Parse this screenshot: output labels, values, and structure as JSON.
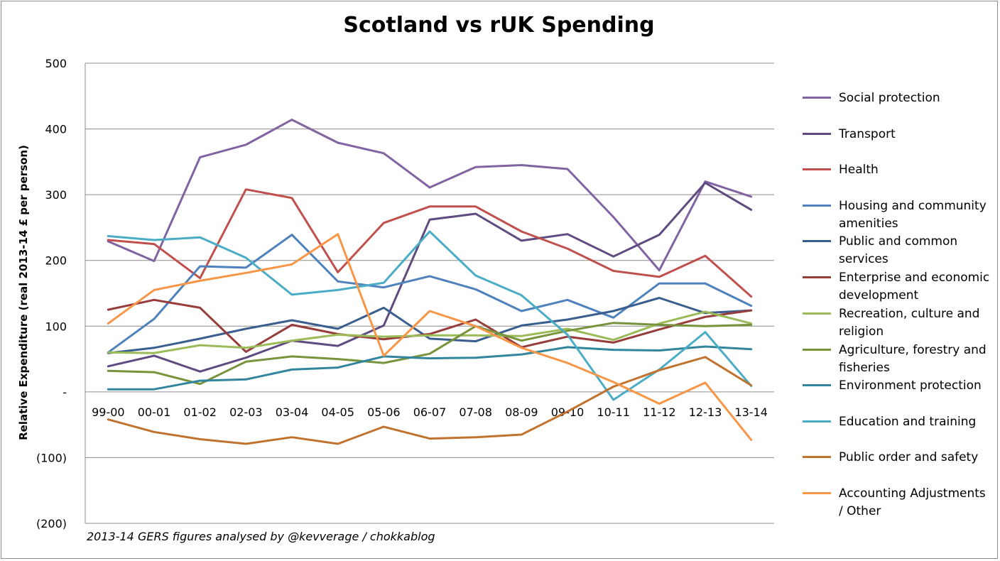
{
  "chart_data": {
    "type": "line",
    "title": "Scotland vs rUK Spending",
    "xlabel": "",
    "ylabel": "Relative Expenditure (real 2013-14 £ per person)",
    "ylim": [
      -200,
      500
    ],
    "ytick_values": [
      500,
      400,
      300,
      200,
      100,
      0,
      -100,
      -200
    ],
    "ytick_labels": [
      "500",
      "400",
      "300",
      "200",
      "100",
      "-",
      "(100)",
      "(200)"
    ],
    "grid": true,
    "legend_position": "right",
    "footnote": "2013-14 GERS figures analysed by @kevverage / chokkablog",
    "categories": [
      "99-00",
      "00-01",
      "01-02",
      "02-03",
      "03-04",
      "04-05",
      "05-06",
      "06-07",
      "07-08",
      "08-09",
      "09-10",
      "10-11",
      "11-12",
      "12-13",
      "13-14"
    ],
    "series": [
      {
        "name": "Social protection",
        "color": "#8064a2",
        "values": [
          229,
          199,
          357,
          376,
          414,
          379,
          363,
          311,
          342,
          345,
          339,
          266,
          185,
          320,
          297
        ]
      },
      {
        "name": "Transport",
        "color": "#5e4b80",
        "values": [
          39,
          55,
          31,
          52,
          78,
          70,
          101,
          262,
          271,
          230,
          240,
          206,
          239,
          318,
          277
        ]
      },
      {
        "name": "Health",
        "color": "#c0504d",
        "values": [
          231,
          225,
          173,
          308,
          295,
          182,
          257,
          282,
          282,
          244,
          218,
          184,
          175,
          207,
          145
        ]
      },
      {
        "name": "Housing and community amenities",
        "color": "#4f81bd",
        "values": [
          60,
          111,
          191,
          189,
          239,
          168,
          159,
          176,
          156,
          123,
          140,
          113,
          165,
          165,
          131
        ]
      },
      {
        "name": "Public and common services",
        "color": "#3a5f8f",
        "values": [
          59,
          67,
          81,
          96,
          109,
          96,
          128,
          81,
          77,
          101,
          110,
          123,
          143,
          120,
          124
        ]
      },
      {
        "name": "Enterprise and economic development",
        "color": "#963c3a",
        "values": [
          125,
          140,
          128,
          61,
          102,
          88,
          80,
          88,
          110,
          68,
          84,
          75,
          95,
          114,
          124
        ]
      },
      {
        "name": "Recreation, culture and religion",
        "color": "#9bbb59",
        "values": [
          60,
          59,
          71,
          67,
          78,
          87,
          84,
          86,
          86,
          85,
          96,
          79,
          104,
          122,
          104
        ]
      },
      {
        "name": "Agriculture, forestry and fisheries",
        "color": "#77933c",
        "values": [
          32,
          30,
          12,
          46,
          54,
          50,
          44,
          58,
          100,
          78,
          93,
          105,
          102,
          100,
          102
        ]
      },
      {
        "name": "Environment protection",
        "color": "#31859c",
        "values": [
          4,
          4,
          17,
          19,
          34,
          37,
          54,
          51,
          52,
          57,
          68,
          64,
          63,
          69,
          65
        ]
      },
      {
        "name": "Education and training",
        "color": "#4bacc6",
        "values": [
          237,
          231,
          235,
          204,
          148,
          155,
          166,
          244,
          177,
          147,
          87,
          -12,
          34,
          91,
          9
        ]
      },
      {
        "name": "Public order and safety",
        "color": "#c0722f",
        "values": [
          -42,
          -61,
          -72,
          -79,
          -69,
          -79,
          -53,
          -71,
          -69,
          -65,
          -30,
          8,
          33,
          53,
          10
        ]
      },
      {
        "name": "Accounting Adjustments / Other",
        "color": "#f79646",
        "values": [
          104,
          155,
          169,
          181,
          194,
          240,
          55,
          123,
          100,
          67,
          44,
          15,
          -18,
          14,
          -73
        ]
      }
    ]
  },
  "legend_items": [
    {
      "label": "Social protection",
      "color": "#8064a2"
    },
    {
      "label": "Transport",
      "color": "#5e4b80"
    },
    {
      "label": "Health",
      "color": "#c0504d"
    },
    {
      "label": "Housing and community amenities",
      "color": "#4f81bd"
    },
    {
      "label": "Public and common services",
      "color": "#3a5f8f"
    },
    {
      "label": "Enterprise and economic development",
      "color": "#963c3a"
    },
    {
      "label": "Recreation, culture and religion",
      "color": "#9bbb59"
    },
    {
      "label": "Agriculture, forestry and fisheries",
      "color": "#77933c"
    },
    {
      "label": "Environment protection",
      "color": "#31859c"
    },
    {
      "label": "Education and training",
      "color": "#4bacc6"
    },
    {
      "label": "Public order and safety",
      "color": "#c0722f"
    },
    {
      "label": "Accounting Adjustments / Other",
      "color": "#f79646"
    }
  ]
}
